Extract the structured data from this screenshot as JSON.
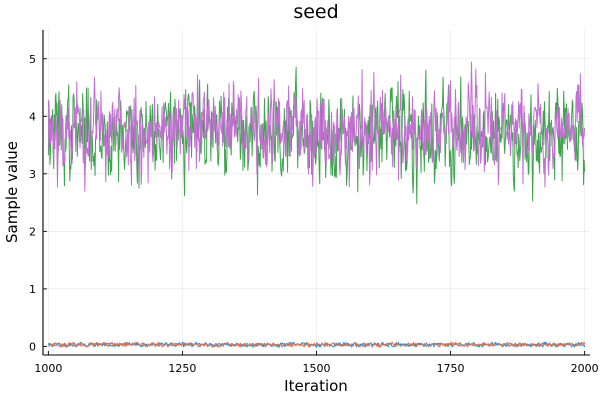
{
  "chart_data": {
    "type": "line",
    "title": "seed",
    "xlabel": "Iteration",
    "ylabel": "Sample value",
    "xlim": [
      990,
      2010
    ],
    "ylim": [
      -0.15,
      5.5
    ],
    "x_ticks": [
      1000,
      1250,
      1500,
      1750,
      2000
    ],
    "y_ticks": [
      0,
      1,
      2,
      3,
      4,
      5
    ],
    "grid": true,
    "legend": "none",
    "x_range": [
      1000,
      2000
    ],
    "series": [
      {
        "color": "#009af9",
        "mean": 0.03,
        "spread": 0.018,
        "max_dev": 0.04,
        "seed": 11
      },
      {
        "color": "#e26f46",
        "mean": 0.03,
        "spread": 0.018,
        "max_dev": 0.04,
        "seed": 23
      },
      {
        "color": "#3ea44e",
        "mean": 3.72,
        "spread": 0.36,
        "max_dev": 1.45,
        "seed": 37
      },
      {
        "color": "#c271d2",
        "mean": 3.78,
        "spread": 0.36,
        "max_dev": 1.5,
        "seed": 53
      }
    ]
  }
}
